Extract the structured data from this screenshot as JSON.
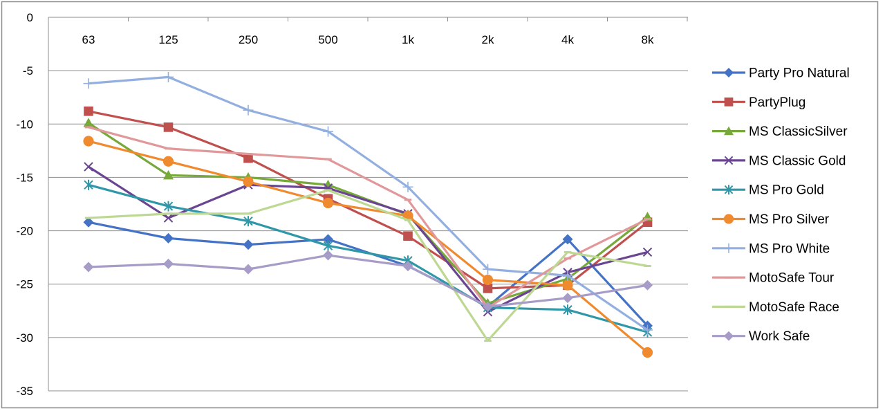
{
  "chart_data": {
    "type": "line",
    "categories": [
      "63",
      "125",
      "250",
      "500",
      "1k",
      "2k",
      "4k",
      "8k"
    ],
    "ylim": [
      -35,
      0
    ],
    "yticks": [
      0,
      -5,
      -10,
      -15,
      -20,
      -25,
      -30,
      -35
    ],
    "grid": true,
    "legend_position": "right",
    "series": [
      {
        "name": "Party Pro Natural",
        "color": "#4472C4",
        "marker": "diamond",
        "values": [
          -19.2,
          -20.7,
          -21.3,
          -20.8,
          -23.3,
          -27.1,
          -20.8,
          -28.9
        ]
      },
      {
        "name": "PartyPlug",
        "color": "#C0504D",
        "marker": "square",
        "values": [
          -8.8,
          -10.3,
          -13.2,
          -17.0,
          -20.5,
          -25.4,
          -25.1,
          -19.2
        ]
      },
      {
        "name": "MS ClassicSilver",
        "color": "#77A93A",
        "marker": "triangle",
        "values": [
          -9.9,
          -14.8,
          -15.0,
          -15.7,
          -18.5,
          -26.8,
          -24.5,
          -18.7
        ]
      },
      {
        "name": "MS Classic Gold",
        "color": "#6A4592",
        "marker": "x",
        "values": [
          -14.0,
          -18.8,
          -15.7,
          -16.0,
          -18.4,
          -27.6,
          -23.9,
          -22.0
        ]
      },
      {
        "name": "MS Pro Gold",
        "color": "#2F97A8",
        "marker": "star",
        "values": [
          -15.7,
          -17.7,
          -19.1,
          -21.4,
          -22.8,
          -27.2,
          -27.4,
          -29.5
        ]
      },
      {
        "name": "MS Pro Silver",
        "color": "#F08A2F",
        "marker": "circle",
        "values": [
          -11.6,
          -13.5,
          -15.4,
          -17.4,
          -18.6,
          -24.6,
          -25.1,
          -31.4
        ]
      },
      {
        "name": "MS Pro White",
        "color": "#93AFE0",
        "marker": "plus",
        "values": [
          -6.2,
          -5.6,
          -8.7,
          -10.7,
          -15.9,
          -23.6,
          -24.2,
          -29.3
        ]
      },
      {
        "name": "MotoSafe Tour",
        "color": "#E0989A",
        "marker": "dash",
        "values": [
          -10.3,
          -12.3,
          -12.8,
          -13.3,
          -17.1,
          -27.2,
          -22.6,
          -18.9
        ]
      },
      {
        "name": "MotoSafe Race",
        "color": "#BDD892",
        "marker": "dash",
        "values": [
          -18.8,
          -18.4,
          -18.4,
          -16.2,
          -19.0,
          -30.3,
          -22.0,
          -23.3
        ]
      },
      {
        "name": "Work Safe",
        "color": "#A79BC7",
        "marker": "diamond",
        "values": [
          -23.4,
          -23.1,
          -23.6,
          -22.3,
          -23.3,
          -27.1,
          -26.3,
          -25.1
        ]
      }
    ]
  }
}
